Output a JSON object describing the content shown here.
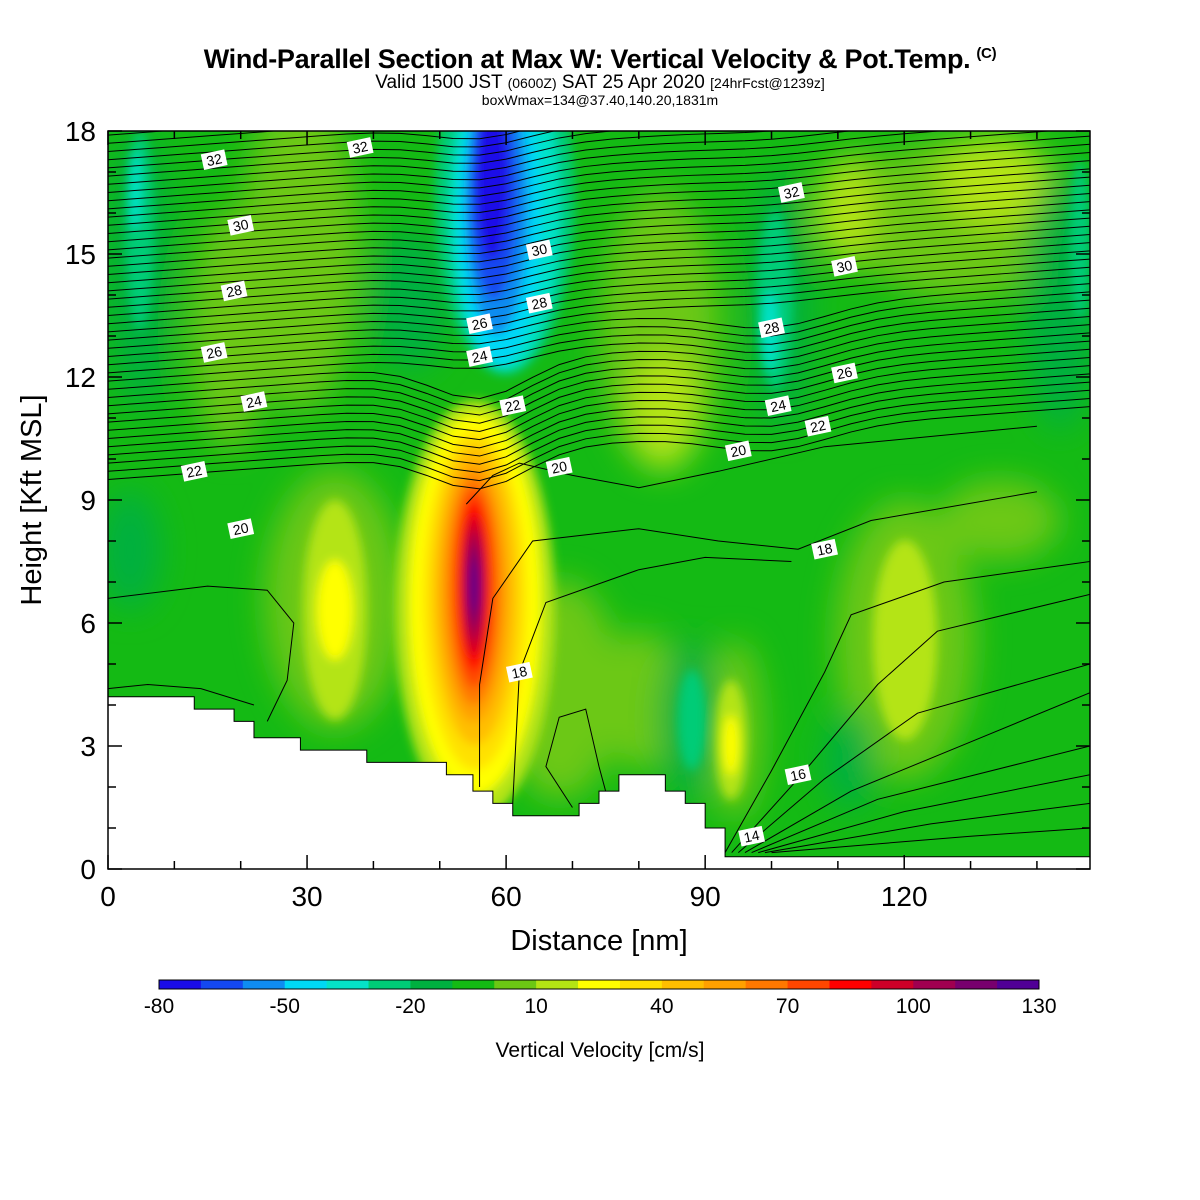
{
  "header": {
    "title": "Wind-Parallel Section at Max W: Vertical Velocity & Pot.Temp.",
    "copyright": "(C)",
    "valid_prefix": "Valid 1500 JST",
    "valid_z": "(0600Z)",
    "valid_date": "SAT 25 Apr 2020",
    "forecast": "[24hrFcst@1239z]",
    "subtitle": "boxWmax=134@37.40,140.20,1831m"
  },
  "chart_data": {
    "type": "heatmap",
    "xlabel": "Distance [nm]",
    "ylabel": "Height [Kft MSL]",
    "xlim": [
      0,
      148
    ],
    "ylim": [
      0,
      18
    ],
    "x_ticks": [
      0,
      30,
      60,
      90,
      120
    ],
    "x_tick_labels": [
      "0",
      "30",
      "60",
      "90",
      "120"
    ],
    "y_ticks": [
      0,
      3,
      6,
      9,
      12,
      15,
      18
    ],
    "y_tick_labels": [
      "0",
      "3",
      "6",
      "9",
      "12",
      "15",
      "18"
    ],
    "colorbar": {
      "title": "Vertical Velocity [cm/s]",
      "min": -80,
      "step": 10,
      "colors": [
        "#1a0ce8",
        "#1448f0",
        "#0f8cf0",
        "#00d8f5",
        "#05e2c8",
        "#00cc77",
        "#00b040",
        "#14ba14",
        "#6cc814",
        "#b4e414",
        "#ffff00",
        "#ffe100",
        "#ffbe00",
        "#ffa000",
        "#ff7800",
        "#ff4600",
        "#ff0000",
        "#cd0028",
        "#a00050",
        "#78006e",
        "#500096"
      ],
      "tick_values": [
        -80,
        -50,
        -20,
        10,
        40,
        70,
        100,
        130
      ],
      "tick_labels": [
        "-80",
        "-50",
        "-20",
        "10",
        "40",
        "70",
        "100",
        "130"
      ]
    },
    "vertical_velocity_cells": [
      {
        "x": 55,
        "y": 6.5,
        "value": 130
      },
      {
        "x": 55,
        "y": 8.5,
        "value": 60
      },
      {
        "x": 55,
        "y": 5,
        "value": 55
      },
      {
        "x": 54,
        "y": 10,
        "value": 20
      },
      {
        "x": 33,
        "y": 6.3,
        "value": 35
      },
      {
        "x": 95,
        "y": 3,
        "value": 35
      },
      {
        "x": 122,
        "y": 6,
        "value": 20
      },
      {
        "x": 60,
        "y": 16.5,
        "value": -80
      },
      {
        "x": 57,
        "y": 13,
        "value": -60
      },
      {
        "x": 106,
        "y": 12.5,
        "value": -25
      },
      {
        "x": 8,
        "y": 14,
        "value": -20
      },
      {
        "x": 92,
        "y": 4,
        "value": -20
      }
    ],
    "potential_temperature_contour_labels": [
      {
        "value": "32",
        "x": 16,
        "y": 17.3
      },
      {
        "value": "32",
        "x": 38,
        "y": 17.6
      },
      {
        "value": "32",
        "x": 103,
        "y": 16.5
      },
      {
        "value": "30",
        "x": 20,
        "y": 15.7
      },
      {
        "value": "30",
        "x": 65,
        "y": 15.1
      },
      {
        "value": "30",
        "x": 111,
        "y": 14.7
      },
      {
        "value": "28",
        "x": 19,
        "y": 14.1
      },
      {
        "value": "28",
        "x": 65,
        "y": 13.8
      },
      {
        "value": "28",
        "x": 100,
        "y": 13.2
      },
      {
        "value": "26",
        "x": 16,
        "y": 12.6
      },
      {
        "value": "26",
        "x": 56,
        "y": 13.3
      },
      {
        "value": "26",
        "x": 111,
        "y": 12.1
      },
      {
        "value": "24",
        "x": 22,
        "y": 11.4
      },
      {
        "value": "24",
        "x": 56,
        "y": 12.5
      },
      {
        "value": "24",
        "x": 101,
        "y": 11.3
      },
      {
        "value": "22",
        "x": 13,
        "y": 9.7
      },
      {
        "value": "22",
        "x": 61,
        "y": 11.3
      },
      {
        "value": "22",
        "x": 107,
        "y": 10.8
      },
      {
        "value": "20",
        "x": 20,
        "y": 8.3
      },
      {
        "value": "20",
        "x": 68,
        "y": 9.8
      },
      {
        "value": "20",
        "x": 95,
        "y": 10.2
      },
      {
        "value": "18",
        "x": 62,
        "y": 4.8
      },
      {
        "value": "18",
        "x": 108,
        "y": 7.8
      },
      {
        "value": "16",
        "x": 104,
        "y": 2.3
      },
      {
        "value": "14",
        "x": 97,
        "y": 0.8
      }
    ],
    "terrain_height_profile": [
      {
        "x": 0,
        "y": 4.2
      },
      {
        "x": 13,
        "y": 4.2
      },
      {
        "x": 13,
        "y": 3.9
      },
      {
        "x": 19,
        "y": 3.9
      },
      {
        "x": 19,
        "y": 3.6
      },
      {
        "x": 22,
        "y": 3.6
      },
      {
        "x": 22,
        "y": 3.2
      },
      {
        "x": 29,
        "y": 3.2
      },
      {
        "x": 29,
        "y": 2.9
      },
      {
        "x": 39,
        "y": 2.9
      },
      {
        "x": 39,
        "y": 2.6
      },
      {
        "x": 51,
        "y": 2.6
      },
      {
        "x": 51,
        "y": 2.3
      },
      {
        "x": 55,
        "y": 2.3
      },
      {
        "x": 55,
        "y": 1.9
      },
      {
        "x": 58,
        "y": 1.9
      },
      {
        "x": 58,
        "y": 1.6
      },
      {
        "x": 61,
        "y": 1.6
      },
      {
        "x": 61,
        "y": 1.3
      },
      {
        "x": 71,
        "y": 1.3
      },
      {
        "x": 71,
        "y": 1.6
      },
      {
        "x": 74,
        "y": 1.6
      },
      {
        "x": 74,
        "y": 1.9
      },
      {
        "x": 77,
        "y": 1.9
      },
      {
        "x": 77,
        "y": 2.3
      },
      {
        "x": 84,
        "y": 2.3
      },
      {
        "x": 84,
        "y": 1.9
      },
      {
        "x": 87,
        "y": 1.9
      },
      {
        "x": 87,
        "y": 1.6
      },
      {
        "x": 90,
        "y": 1.6
      },
      {
        "x": 90,
        "y": 1.0
      },
      {
        "x": 93,
        "y": 1.0
      },
      {
        "x": 93,
        "y": 0.3
      },
      {
        "x": 148,
        "y": 0.3
      }
    ]
  }
}
